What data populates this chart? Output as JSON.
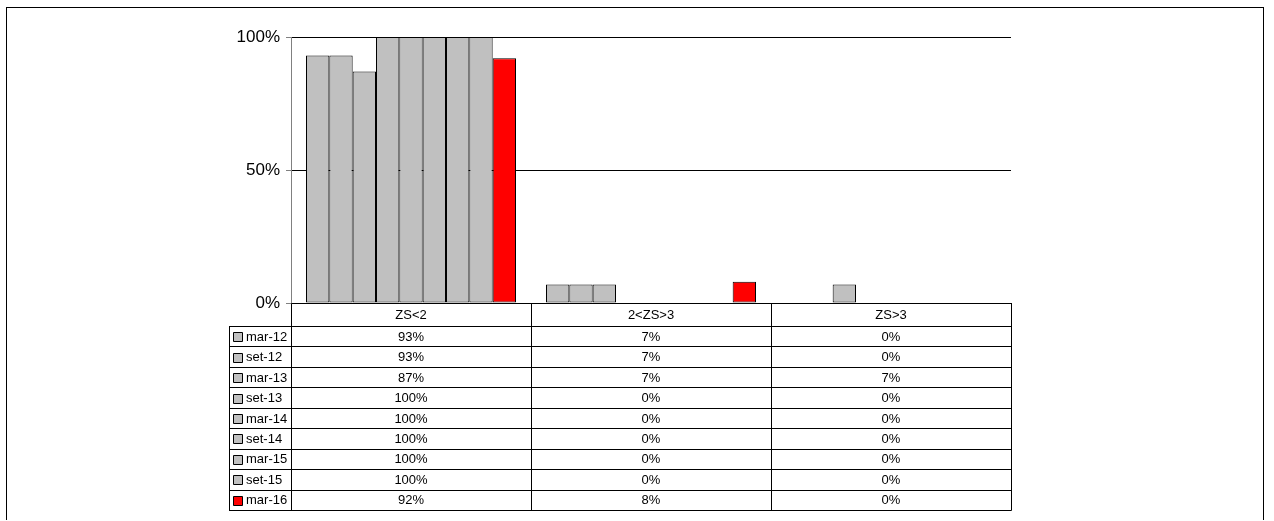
{
  "chart_data": {
    "type": "bar",
    "categories": [
      "ZS<2",
      "2<ZS>3",
      "ZS>3"
    ],
    "series": [
      {
        "name": "mar-12",
        "color": "#c0c0c0",
        "values": [
          93,
          7,
          0
        ],
        "value_labels": [
          "93%",
          "7%",
          "0%"
        ]
      },
      {
        "name": "set-12",
        "color": "#c0c0c0",
        "values": [
          93,
          7,
          0
        ],
        "value_labels": [
          "93%",
          "7%",
          "0%"
        ]
      },
      {
        "name": "mar-13",
        "color": "#c0c0c0",
        "values": [
          87,
          7,
          7
        ],
        "value_labels": [
          "87%",
          "7%",
          "7%"
        ]
      },
      {
        "name": "set-13",
        "color": "#c0c0c0",
        "values": [
          100,
          0,
          0
        ],
        "value_labels": [
          "100%",
          "0%",
          "0%"
        ]
      },
      {
        "name": "mar-14",
        "color": "#c0c0c0",
        "values": [
          100,
          0,
          0
        ],
        "value_labels": [
          "100%",
          "0%",
          "0%"
        ]
      },
      {
        "name": "set-14",
        "color": "#c0c0c0",
        "values": [
          100,
          0,
          0
        ],
        "value_labels": [
          "100%",
          "0%",
          "0%"
        ]
      },
      {
        "name": "mar-15",
        "color": "#c0c0c0",
        "values": [
          100,
          0,
          0
        ],
        "value_labels": [
          "100%",
          "0%",
          "0%"
        ]
      },
      {
        "name": "set-15",
        "color": "#c0c0c0",
        "values": [
          100,
          0,
          0
        ],
        "value_labels": [
          "100%",
          "0%",
          "0%"
        ]
      },
      {
        "name": "mar-16",
        "color": "#ff0000",
        "values": [
          92,
          8,
          0
        ],
        "value_labels": [
          "92%",
          "8%",
          "0%"
        ]
      }
    ],
    "ylim": [
      0,
      100
    ],
    "yticks": [
      {
        "value": 0,
        "label": "0%"
      },
      {
        "value": 50,
        "label": "50%"
      },
      {
        "value": 100,
        "label": "100%"
      }
    ],
    "grid": "y",
    "legend": "bottom left"
  }
}
